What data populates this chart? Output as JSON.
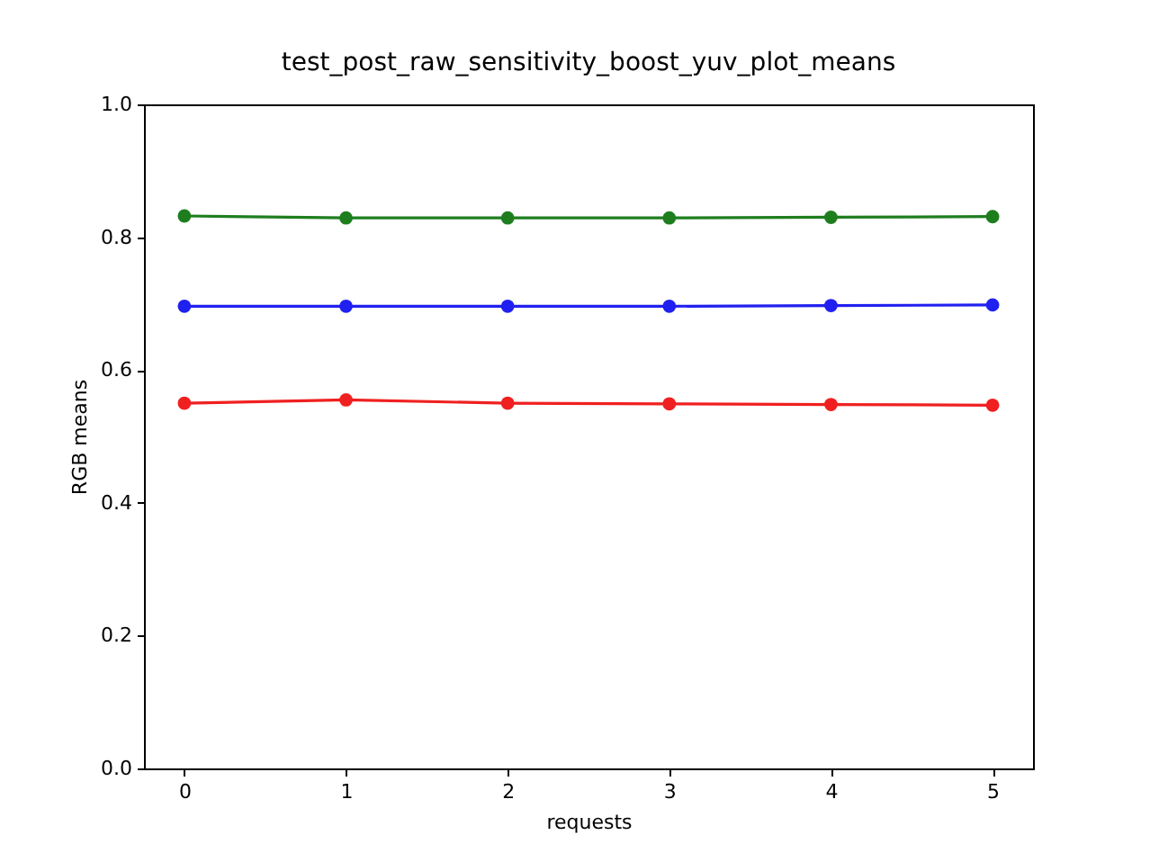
{
  "chart_data": {
    "type": "line",
    "title": "test_post_raw_sensitivity_boost_yuv_plot_means",
    "xlabel": "requests",
    "ylabel": "RGB means",
    "x": [
      0,
      1,
      2,
      3,
      4,
      5
    ],
    "series": [
      {
        "color": "#f02020",
        "values": [
          0.55,
          0.555,
          0.55,
          0.549,
          0.548,
          0.547
        ]
      },
      {
        "color": "#1e7e1e",
        "values": [
          0.832,
          0.829,
          0.829,
          0.829,
          0.83,
          0.831
        ]
      },
      {
        "color": "#2020f0",
        "values": [
          0.696,
          0.696,
          0.696,
          0.696,
          0.697,
          0.698
        ]
      }
    ],
    "xlim": [
      -0.25,
      5.25
    ],
    "xticks": [
      0,
      1,
      2,
      3,
      4,
      5
    ],
    "ylim": [
      0,
      1
    ],
    "yticks": [
      {
        "value": 0,
        "label": "0.0"
      },
      {
        "value": 0.2,
        "label": "0.2"
      },
      {
        "value": 0.4,
        "label": "0.4"
      },
      {
        "value": 0.6,
        "label": "0.6"
      },
      {
        "value": 0.8,
        "label": "0.8"
      },
      {
        "value": 1,
        "label": "1.0"
      }
    ],
    "marker": "circle",
    "line_style": "solid",
    "grid": false
  }
}
